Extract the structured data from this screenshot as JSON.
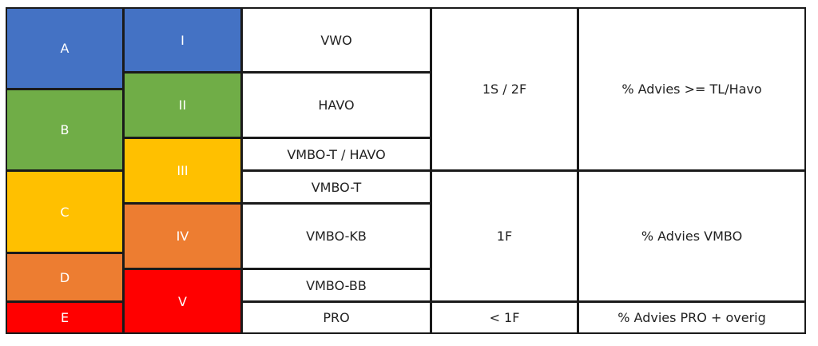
{
  "table": {
    "levels": [
      "A",
      "B",
      "C",
      "D",
      "E"
    ],
    "groups": [
      "I",
      "II",
      "III",
      "IV",
      "V"
    ],
    "school_types": [
      "VWO",
      "HAVO",
      "VMBO-T / HAVO",
      "VMBO-T",
      "VMBO-KB",
      "VMBO-BB",
      "PRO"
    ],
    "reference_levels": [
      "1S / 2F",
      "1F",
      "< 1F"
    ],
    "indicators": [
      "% Advies >= TL/Havo",
      "% Advies VMBO",
      "% Advies PRO + overig"
    ]
  }
}
